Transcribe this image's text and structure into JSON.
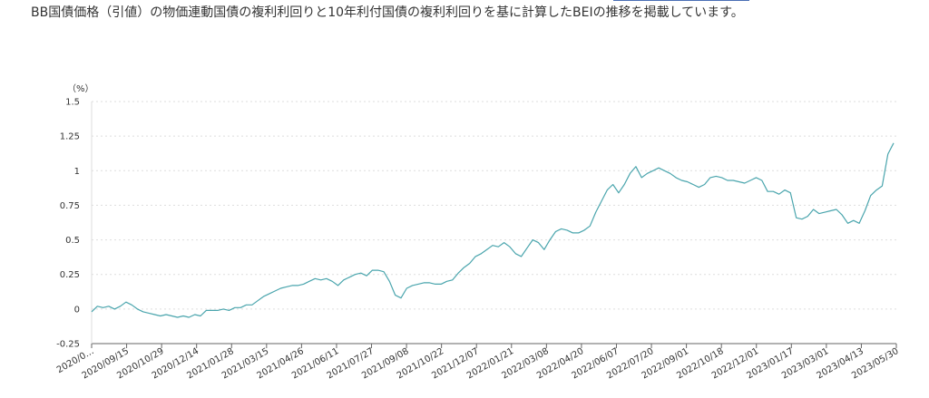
{
  "description": "BB国債価格（引値）の物価連動国債の複利利回りと10年利付国債の複利利回りを基に計算したBEIの推移を掲載しています。",
  "colors": {
    "line": "#4aa5ad",
    "grid": "#dddddd",
    "axis": "#666666"
  },
  "chart_data": {
    "type": "line",
    "title": "",
    "xlabel": "",
    "ylabel": "（%）",
    "ylim": [
      -0.25,
      1.5
    ],
    "grid": true,
    "legend": "none",
    "y_ticks": [
      "1.5",
      "1.25",
      "1",
      "0.75",
      "0.5",
      "0.25",
      "0",
      "-0.25"
    ],
    "y_tick_values": [
      1.5,
      1.25,
      1,
      0.75,
      0.5,
      0.25,
      0,
      -0.25
    ],
    "x_ticks": [
      "2020/0…",
      "2020/09/15",
      "2020/10/29",
      "2020/12/14",
      "2021/01/28",
      "2021/03/15",
      "2021/04/26",
      "2021/06/11",
      "2021/07/27",
      "2021/09/08",
      "2021/10/22",
      "2021/12/07",
      "2022/01/21",
      "2022/03/08",
      "2022/04/20",
      "2022/06/07",
      "2022/07/20",
      "2022/09/01",
      "2022/10/18",
      "2022/12/01",
      "2023/01/17",
      "2023/03/01",
      "2023/04/13",
      "2023/05/30"
    ],
    "series": [
      {
        "values": [
          -0.02,
          0.02,
          0.01,
          0.02,
          0.0,
          0.02,
          0.05,
          0.03,
          0.0,
          -0.02,
          -0.03,
          -0.04,
          -0.05,
          -0.04,
          -0.05,
          -0.06,
          -0.05,
          -0.06,
          -0.04,
          -0.05,
          -0.01,
          -0.01,
          -0.01,
          0.0,
          -0.01,
          0.01,
          0.01,
          0.03,
          0.03,
          0.06,
          0.09,
          0.11,
          0.13,
          0.15,
          0.16,
          0.17,
          0.17,
          0.18,
          0.2,
          0.22,
          0.21,
          0.22,
          0.2,
          0.17,
          0.21,
          0.23,
          0.25,
          0.26,
          0.24,
          0.28,
          0.28,
          0.27,
          0.2,
          0.1,
          0.08,
          0.15,
          0.17,
          0.18,
          0.19,
          0.19,
          0.18,
          0.18,
          0.2,
          0.21,
          0.26,
          0.3,
          0.33,
          0.38,
          0.4,
          0.43,
          0.46,
          0.45,
          0.48,
          0.45,
          0.4,
          0.38,
          0.44,
          0.5,
          0.48,
          0.43,
          0.5,
          0.56,
          0.58,
          0.57,
          0.55,
          0.55,
          0.57,
          0.6,
          0.7,
          0.78,
          0.86,
          0.9,
          0.84,
          0.9,
          0.98,
          1.03,
          0.95,
          0.98,
          1.0,
          1.02,
          1.0,
          0.98,
          0.95,
          0.93,
          0.92,
          0.9,
          0.88,
          0.9,
          0.95,
          0.96,
          0.95,
          0.93,
          0.93,
          0.92,
          0.91,
          0.93,
          0.95,
          0.93,
          0.85,
          0.85,
          0.83,
          0.86,
          0.84,
          0.66,
          0.65,
          0.67,
          0.72,
          0.69,
          0.7,
          0.71,
          0.72,
          0.68,
          0.62,
          0.64,
          0.62,
          0.71,
          0.82,
          0.86,
          0.89,
          1.12,
          1.2
        ]
      }
    ]
  }
}
